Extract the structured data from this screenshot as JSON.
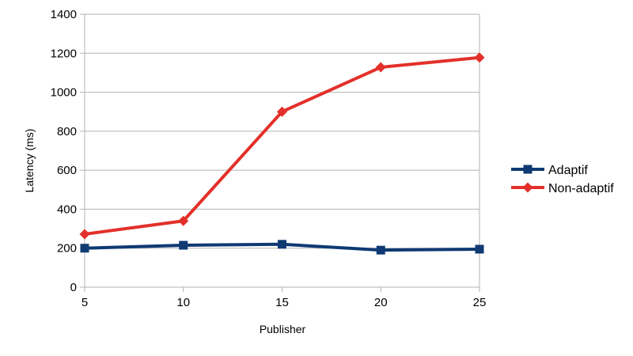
{
  "chart_data": {
    "type": "line",
    "title": "",
    "xlabel": "Publisher",
    "ylabel": "Latency (ms)",
    "x": [
      5,
      10,
      15,
      20,
      25
    ],
    "x_tick_labels": [
      "5",
      "10",
      "15",
      "20",
      "25"
    ],
    "ylim": [
      0,
      1400
    ],
    "y_ticks": [
      0,
      200,
      400,
      600,
      800,
      1000,
      1200,
      1400
    ],
    "grid": "horizontal",
    "legend_position": "right",
    "series": [
      {
        "name": "Adaptif",
        "color": "#0f3a73",
        "marker": "square",
        "values": [
          200,
          215,
          220,
          190,
          195
        ]
      },
      {
        "name": "Non-adaptif",
        "color": "#e3302a",
        "marker": "diamond",
        "values": [
          272,
          340,
          900,
          1128,
          1178
        ]
      }
    ]
  }
}
